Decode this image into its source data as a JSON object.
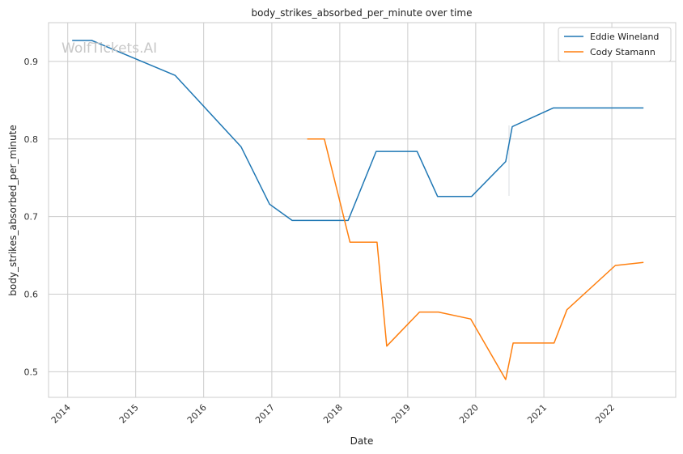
{
  "chart_data": {
    "type": "line",
    "title": "body_strikes_absorbed_per_minute over time",
    "xlabel": "Date",
    "ylabel": "body_strikes_absorbed_per_minute",
    "x_ticks": [
      "2014",
      "2015",
      "2016",
      "2017",
      "2018",
      "2019",
      "2020",
      "2021",
      "2022"
    ],
    "y_ticks": [
      "0.5",
      "0.6",
      "0.7",
      "0.8",
      "0.9"
    ],
    "xlim": [
      "2013-09-20",
      "2022-12-10"
    ],
    "ylim": [
      0.467,
      0.95
    ],
    "grid": true,
    "legend_position": "top-right",
    "watermark": "WolfTickets.AI",
    "series": [
      {
        "name": "Eddie Wineland",
        "color": "#1f77b4",
        "points": [
          [
            "2014-01-25",
            0.927
          ],
          [
            "2014-05-10",
            0.927
          ],
          [
            "2015-08-01",
            0.882
          ],
          [
            "2016-07-20",
            0.79
          ],
          [
            "2016-12-20",
            0.716
          ],
          [
            "2017-04-20",
            0.695
          ],
          [
            "2018-02-15",
            0.695
          ],
          [
            "2018-07-15",
            0.784
          ],
          [
            "2019-02-20",
            0.784
          ],
          [
            "2019-06-10",
            0.726
          ],
          [
            "2019-12-10",
            0.726
          ],
          [
            "2020-06-10",
            0.771
          ],
          [
            "2020-07-15",
            0.816
          ],
          [
            "2021-02-20",
            0.84
          ],
          [
            "2022-06-20",
            0.84
          ]
        ]
      },
      {
        "name": "Cody Stamann",
        "color": "#ff7f0e",
        "points": [
          [
            "2017-07-10",
            0.8
          ],
          [
            "2017-10-10",
            0.8
          ],
          [
            "2018-02-25",
            0.667
          ],
          [
            "2018-07-20",
            0.667
          ],
          [
            "2018-09-10",
            0.533
          ],
          [
            "2019-03-05",
            0.577
          ],
          [
            "2019-06-15",
            0.577
          ],
          [
            "2019-12-05",
            0.568
          ],
          [
            "2020-06-10",
            0.49
          ],
          [
            "2020-07-20",
            0.537
          ],
          [
            "2021-02-25",
            0.537
          ],
          [
            "2021-05-05",
            0.58
          ],
          [
            "2022-01-20",
            0.637
          ],
          [
            "2022-06-20",
            0.641
          ]
        ]
      }
    ]
  }
}
